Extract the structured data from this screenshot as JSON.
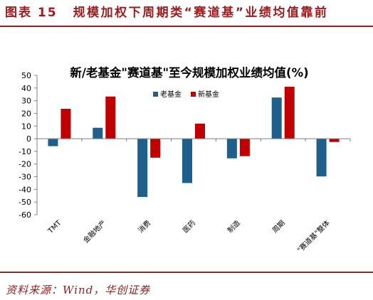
{
  "header": {
    "figure_label": "图表 15",
    "title": "规模加权下周期类“赛道基”业绩均值靠前"
  },
  "chart_data": {
    "type": "bar",
    "title": "新/老基金\"赛道基\"至今规模加权业绩均值(%)",
    "categories": [
      "TMT",
      "金融地产",
      "消费",
      "医药",
      "制造",
      "周期",
      "\"赛道基\"整体"
    ],
    "series": [
      {
        "name": "老基金",
        "color": "#1F5F8B",
        "values": [
          -5.9,
          8.6,
          -46.0,
          -35.0,
          -15.5,
          32.5,
          -29.8
        ]
      },
      {
        "name": "新基金",
        "color": "#C00000",
        "values": [
          23.6,
          33.3,
          -15.0,
          11.9,
          -13.8,
          41.0,
          -2.6
        ]
      }
    ],
    "ylim": [
      -60,
      50
    ],
    "yticks": [
      "50",
      "40",
      "30",
      "20",
      "10",
      "0",
      "-10",
      "-20",
      "-30",
      "-40",
      "-50",
      "-60"
    ],
    "xlabel": "",
    "ylabel": "",
    "grid": false,
    "legend_position": "top-center"
  },
  "footer": {
    "source": "资料来源：Wind，华创证券"
  },
  "colors": {
    "brand": "#9A1C1F",
    "axis": "#7F7F7F"
  }
}
